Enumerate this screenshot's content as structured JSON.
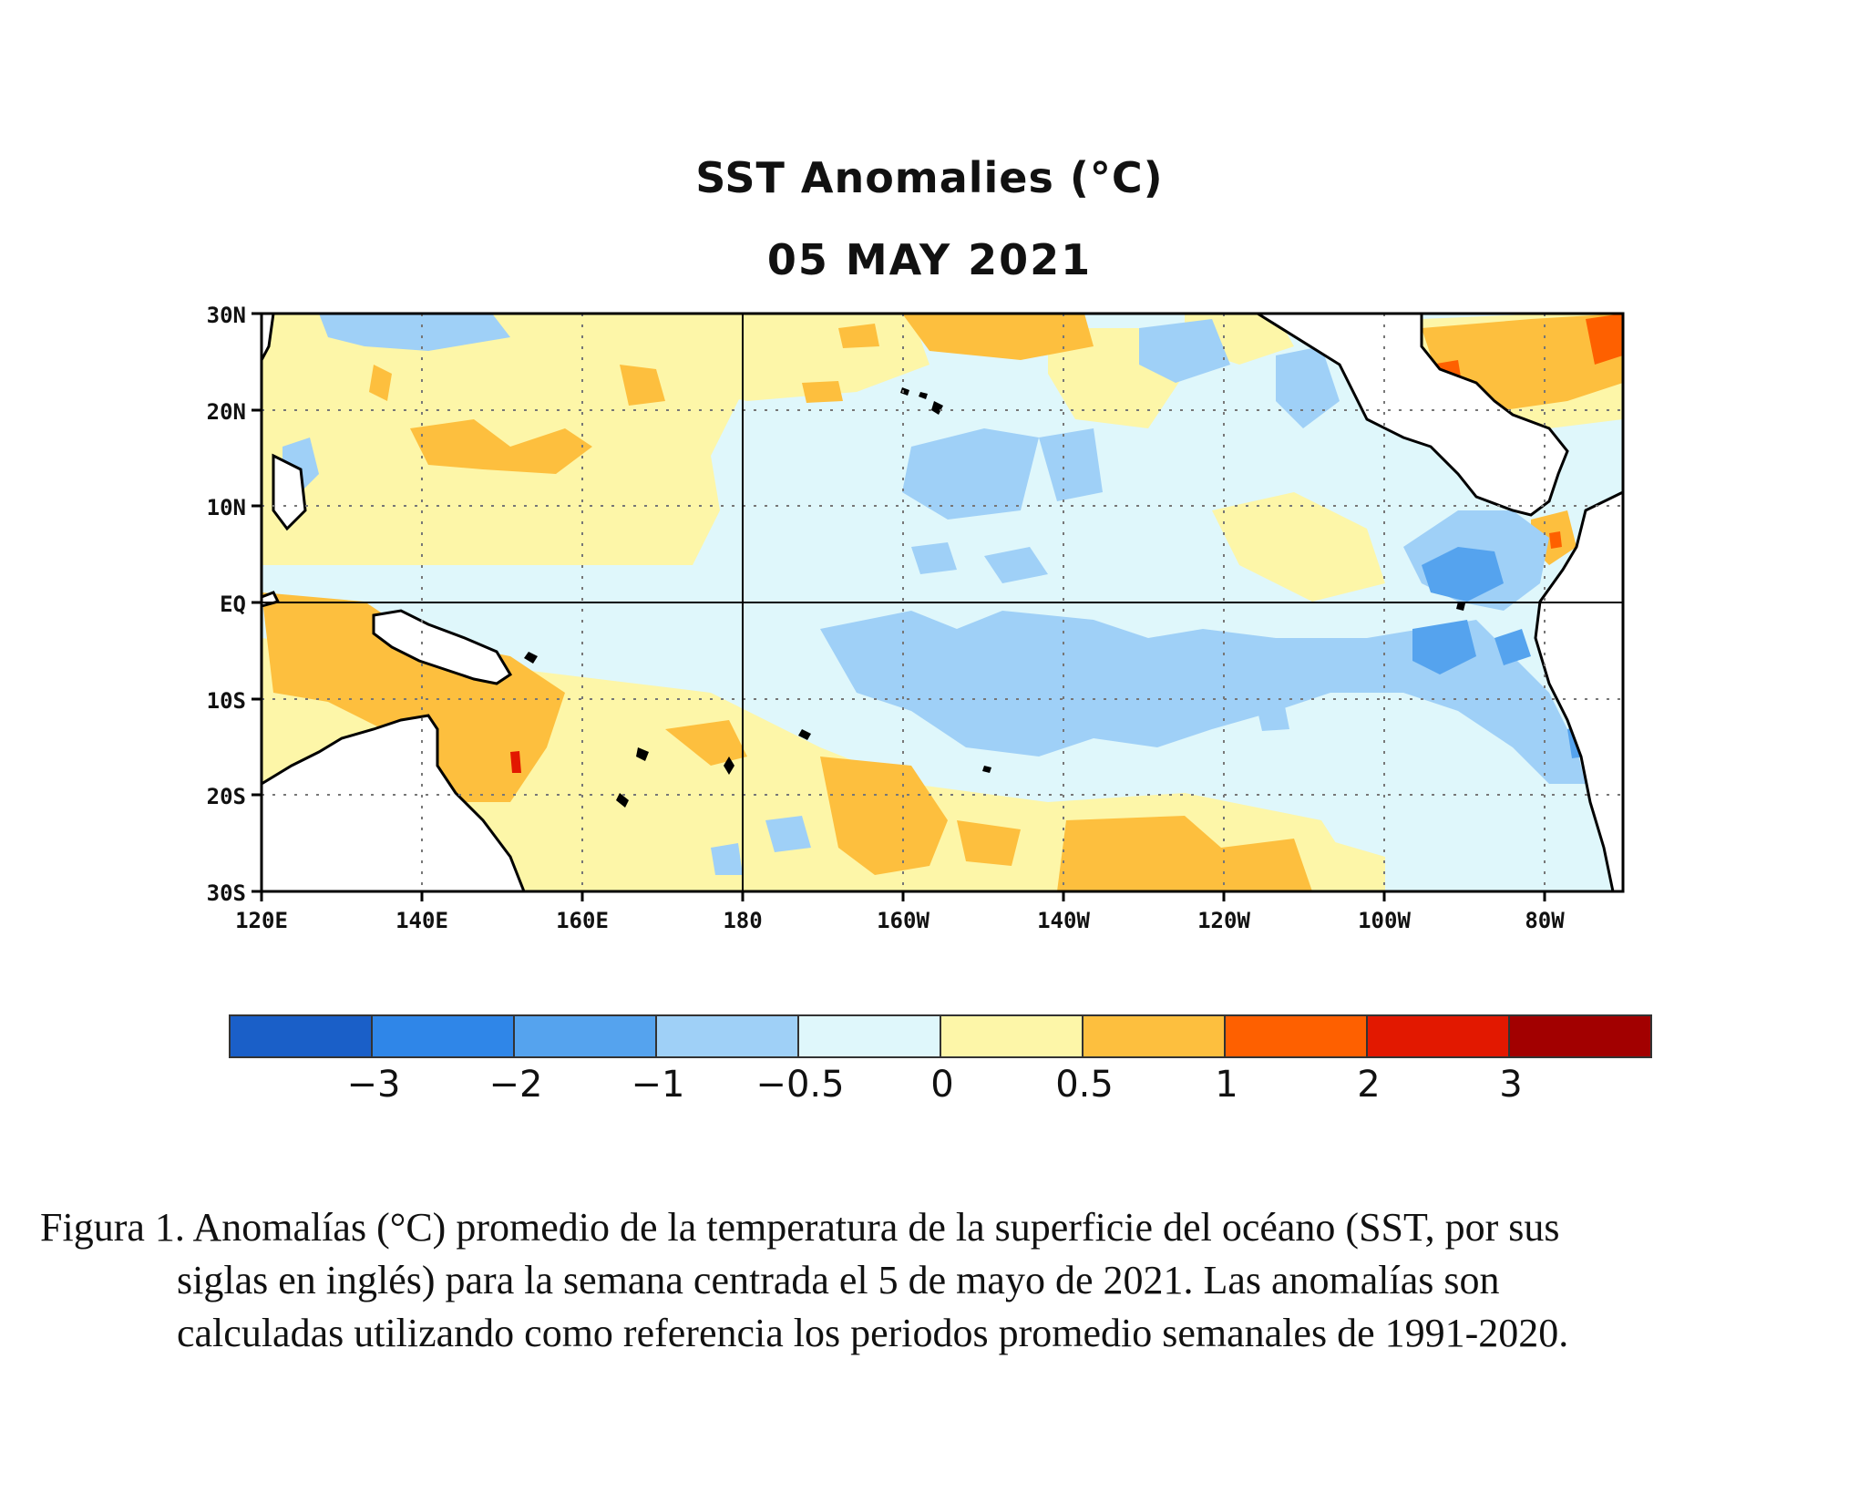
{
  "title": "SST Anomalies (°C)",
  "subtitle": "05 MAY 2021",
  "map": {
    "lat_labels": [
      "30N",
      "20N",
      "10N",
      "EQ",
      "10S",
      "20S",
      "30S"
    ],
    "lon_labels": [
      "120E",
      "140E",
      "160E",
      "180",
      "160W",
      "140W",
      "120W",
      "100W",
      "80W"
    ],
    "lon_range": [
      "120E",
      "70W"
    ],
    "lat_range": [
      "30S",
      "30N"
    ]
  },
  "colorbar": {
    "colors": [
      "#1a5fc8",
      "#2f86e8",
      "#55a3ee",
      "#9fd0f7",
      "#dff7fb",
      "#fdf6a8",
      "#fdbf3e",
      "#fe6000",
      "#e21800",
      "#a20000"
    ],
    "labels": [
      "−3",
      "−2",
      "−1",
      "−0.5",
      "0",
      "0.5",
      "1",
      "2",
      "3"
    ]
  },
  "caption": {
    "line1": "Figura 1. Anomalías (°C) promedio de la temperatura de la superficie del océano (SST, por sus",
    "line2": "siglas en inglés) para la semana centrada el 5 de mayo de 2021. Las anomalías son",
    "line3": "calculadas utilizando como referencia los periodos promedio semanales de 1991-2020."
  }
}
